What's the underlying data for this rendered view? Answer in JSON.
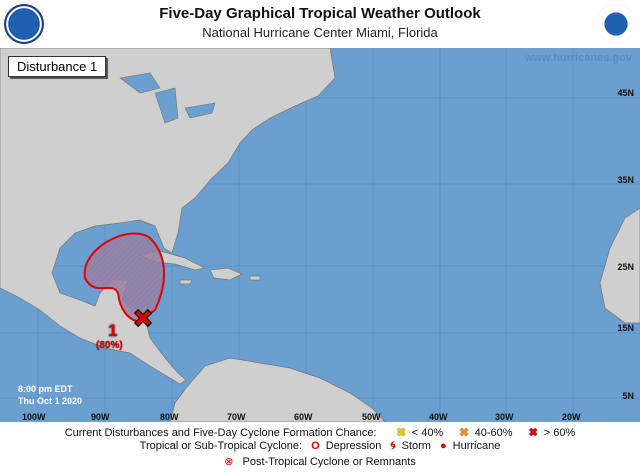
{
  "header": {
    "title": "Five-Day Graphical Tropical Weather Outlook",
    "subtitle": "National Hurricane Center  Miami, Florida",
    "left_logo": "NOAA",
    "right_logo": "NATIONAL WEATHER SERVICE"
  },
  "panel_label": "Disturbance 1",
  "watermark": "www.hurricanes.gov",
  "lat_labels": [
    "45N",
    "35N",
    "25N",
    "15N",
    "5N"
  ],
  "lon_labels": [
    "100W",
    "90W",
    "80W",
    "70W",
    "60W",
    "50W",
    "40W",
    "30W",
    "20W"
  ],
  "timestamp": {
    "time": "8:00 pm EDT",
    "date": "Thu Oct 1 2020"
  },
  "disturbances": [
    {
      "id": "1",
      "chance": "(80%)",
      "category": "> 60%",
      "color": "#e00000"
    }
  ],
  "legend": {
    "row1_label": "Current Disturbances and Five-Day Cyclone Formation Chance:",
    "low": "< 40%",
    "medium": "40-60%",
    "high": "> 60%",
    "row2_label": "Tropical or Sub-Tropical Cyclone:",
    "depression": "Depression",
    "storm": "Storm",
    "hurricane": "Hurricane",
    "post_tropical": "Post-Tropical Cyclone or Remnants",
    "colors": {
      "low": "#f5f500",
      "medium": "#f09020",
      "high": "#e00000",
      "ocean": "#6a9fcf",
      "land": "#cfcfcf"
    }
  }
}
